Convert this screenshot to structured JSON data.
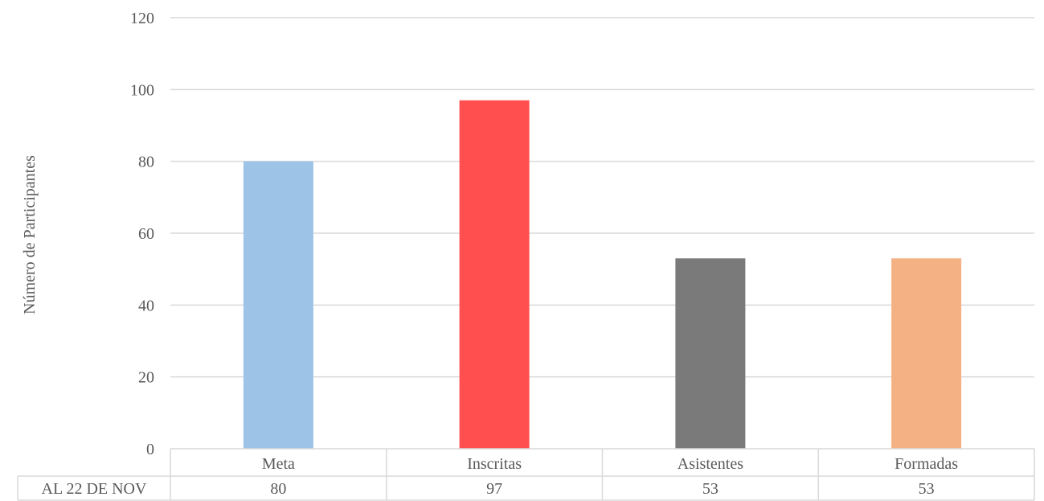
{
  "chart_data": {
    "type": "bar",
    "categories": [
      "Meta",
      "Inscritas",
      "Asistentes",
      "Formadas"
    ],
    "series": [
      {
        "name": "AL 22 DE NOV",
        "values": [
          80,
          97,
          53,
          53
        ]
      }
    ],
    "bar_colors": [
      "#9dc3e6",
      "#ff4f4f",
      "#7a7a7a",
      "#f4b183"
    ],
    "xlabel": "",
    "ylabel": "Número de Participantes",
    "ylim": [
      0,
      120
    ],
    "yticks": [
      0,
      20,
      40,
      60,
      80,
      100,
      120
    ],
    "grid": true,
    "legend": "data-table",
    "data_table": {
      "row_label": "AL 22 DE NOV",
      "values": [
        "80",
        "97",
        "53",
        "53"
      ]
    }
  }
}
